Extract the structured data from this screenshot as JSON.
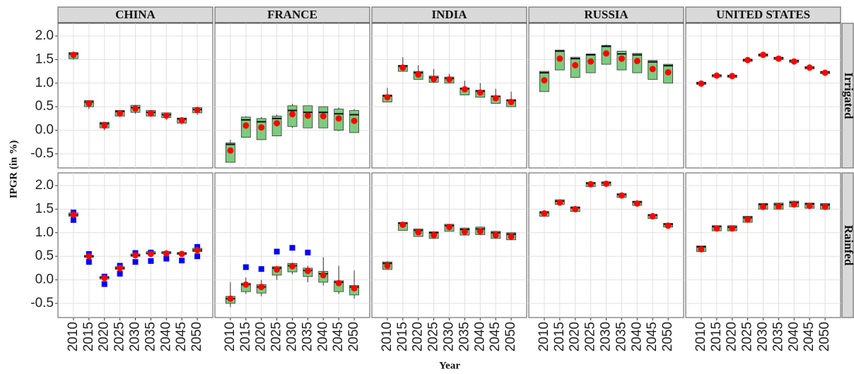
{
  "chart_data": {
    "type": "boxplot",
    "y_label": "IPGR (in %)",
    "x_label": "Year",
    "columns": [
      "CHINA",
      "FRANCE",
      "INDIA",
      "RUSSIA",
      "UNITED STATES"
    ],
    "rows": [
      "Irrigated",
      "Rainfed"
    ],
    "categories": [
      "2010",
      "2015",
      "2020",
      "2025",
      "2030",
      "2035",
      "2040",
      "2045",
      "2050"
    ],
    "ylim": [
      -0.8,
      2.27
    ],
    "yticks": [
      {
        "value": 2,
        "label": "2.0"
      },
      1.5,
      {
        "value": 1,
        "label": "1.0"
      },
      0.5,
      {
        "value": 0,
        "label": "0.0"
      },
      -0.5
    ],
    "grid": true,
    "box_color": "#7dcb7f",
    "mean_color": "#ff0000",
    "outlier_color": "#0000ff",
    "panels": [
      {
        "stats": [
          [
            1.5,
            1.52,
            1.62,
            1.65,
            1.65
          ],
          [
            0.45,
            0.5,
            0.6,
            0.63,
            0.63
          ],
          [
            0.0,
            0.05,
            0.14,
            0.17,
            0.17
          ],
          [
            0.28,
            0.3,
            0.4,
            0.42,
            0.42
          ],
          [
            0.35,
            0.38,
            0.48,
            0.53,
            0.53
          ],
          [
            0.28,
            0.3,
            0.38,
            0.42,
            0.42
          ],
          [
            0.22,
            0.27,
            0.33,
            0.37,
            0.37
          ],
          [
            0.12,
            0.15,
            0.24,
            0.26,
            0.26
          ],
          [
            0.33,
            0.37,
            0.44,
            0.48,
            0.48
          ]
        ],
        "means": [
          1.6,
          0.57,
          0.1,
          0.36,
          0.46,
          0.36,
          0.31,
          0.21,
          0.43
        ]
      },
      {
        "stats": [
          [
            -0.68,
            -0.68,
            -0.3,
            -0.27,
            -0.2
          ],
          [
            -0.15,
            -0.15,
            0.22,
            0.28,
            0.3
          ],
          [
            -0.2,
            -0.2,
            0.18,
            0.25,
            0.28
          ],
          [
            -0.12,
            -0.12,
            0.25,
            0.3,
            0.33
          ],
          [
            0.05,
            0.08,
            0.42,
            0.52,
            0.56
          ],
          [
            0.05,
            0.05,
            0.38,
            0.52,
            0.52
          ],
          [
            0.05,
            0.05,
            0.38,
            0.5,
            0.5
          ],
          [
            -0.02,
            0.0,
            0.35,
            0.45,
            0.48
          ],
          [
            -0.05,
            -0.05,
            0.33,
            0.42,
            0.45
          ]
        ],
        "means": [
          -0.43,
          0.1,
          0.06,
          0.15,
          0.34,
          0.31,
          0.3,
          0.25,
          0.2
        ]
      },
      {
        "stats": [
          [
            0.6,
            0.6,
            0.73,
            0.75,
            0.9
          ],
          [
            1.25,
            1.25,
            1.36,
            1.38,
            1.55
          ],
          [
            1.08,
            1.08,
            1.22,
            1.25,
            1.38
          ],
          [
            1.0,
            1.02,
            1.12,
            1.15,
            1.3
          ],
          [
            1.0,
            1.0,
            1.1,
            1.13,
            1.2
          ],
          [
            0.75,
            0.75,
            0.88,
            0.9,
            1.05
          ],
          [
            0.7,
            0.7,
            0.83,
            0.85,
            1.0
          ],
          [
            0.57,
            0.57,
            0.72,
            0.73,
            0.88
          ],
          [
            0.5,
            0.5,
            0.63,
            0.65,
            0.82
          ]
        ],
        "means": [
          0.7,
          1.33,
          1.18,
          1.09,
          1.08,
          0.87,
          0.8,
          0.68,
          0.6
        ]
      },
      {
        "stats": [
          [
            0.82,
            0.82,
            1.22,
            1.25,
            1.25
          ],
          [
            1.28,
            1.28,
            1.68,
            1.7,
            1.7
          ],
          [
            1.12,
            1.12,
            1.52,
            1.55,
            1.55
          ],
          [
            1.22,
            1.22,
            1.6,
            1.62,
            1.62
          ],
          [
            1.4,
            1.4,
            1.78,
            1.8,
            1.82
          ],
          [
            1.28,
            1.28,
            1.62,
            1.68,
            1.68
          ],
          [
            1.22,
            1.22,
            1.6,
            1.63,
            1.63
          ],
          [
            1.08,
            1.08,
            1.45,
            1.48,
            1.48
          ],
          [
            1.0,
            1.0,
            1.37,
            1.4,
            1.4
          ]
        ],
        "means": [
          1.06,
          1.52,
          1.38,
          1.46,
          1.63,
          1.52,
          1.47,
          1.3,
          1.23
        ]
      },
      {
        "stats": [
          [
            0.97,
            0.97,
            1.0,
            1.02,
            1.02
          ],
          [
            1.13,
            1.13,
            1.16,
            1.18,
            1.18
          ],
          [
            1.12,
            1.12,
            1.15,
            1.17,
            1.17
          ],
          [
            1.46,
            1.46,
            1.49,
            1.51,
            1.51
          ],
          [
            1.57,
            1.57,
            1.6,
            1.62,
            1.62
          ],
          [
            1.5,
            1.5,
            1.53,
            1.55,
            1.55
          ],
          [
            1.44,
            1.44,
            1.47,
            1.49,
            1.49
          ],
          [
            1.3,
            1.3,
            1.33,
            1.35,
            1.35
          ],
          [
            1.2,
            1.2,
            1.23,
            1.25,
            1.25
          ]
        ],
        "means": [
          0.99,
          1.16,
          1.15,
          1.49,
          1.6,
          1.52,
          1.46,
          1.33,
          1.22
        ]
      },
      {
        "stats": [
          [
            1.35,
            1.35,
            1.38,
            1.42,
            1.42
          ],
          [
            0.48,
            0.48,
            0.5,
            0.52,
            0.52
          ],
          [
            0.02,
            0.02,
            0.05,
            0.07,
            0.07
          ],
          [
            0.22,
            0.22,
            0.25,
            0.28,
            0.28
          ],
          [
            0.5,
            0.5,
            0.52,
            0.55,
            0.55
          ],
          [
            0.55,
            0.55,
            0.56,
            0.6,
            0.6
          ],
          [
            0.56,
            0.56,
            0.57,
            0.6,
            0.6
          ],
          [
            0.54,
            0.54,
            0.56,
            0.58,
            0.58
          ],
          [
            0.6,
            0.6,
            0.63,
            0.67,
            0.67
          ]
        ],
        "means": [
          1.38,
          0.5,
          0.04,
          0.25,
          0.52,
          0.55,
          0.56,
          0.55,
          0.63
        ],
        "outliers": [
          [
            1.27,
            1.43
          ],
          [
            0.38,
            0.55
          ],
          [
            -0.09,
            0.07
          ],
          [
            0.13,
            0.3
          ],
          [
            0.38,
            0.57
          ],
          [
            0.4,
            0.58
          ],
          [
            0.45
          ],
          [
            0.41
          ],
          [
            0.5,
            0.7
          ]
        ]
      },
      {
        "stats": [
          [
            -0.58,
            -0.5,
            -0.4,
            -0.35,
            -0.05
          ],
          [
            -0.3,
            -0.25,
            -0.1,
            -0.07,
            0.05
          ],
          [
            -0.35,
            -0.28,
            -0.15,
            -0.1,
            0.0
          ],
          [
            0.0,
            0.1,
            0.25,
            0.28,
            0.3
          ],
          [
            0.12,
            0.17,
            0.3,
            0.35,
            0.37
          ],
          [
            -0.05,
            0.07,
            0.2,
            0.25,
            0.3
          ],
          [
            -0.12,
            -0.05,
            0.13,
            0.18,
            0.48
          ],
          [
            -0.3,
            -0.25,
            -0.05,
            -0.02,
            0.3
          ],
          [
            -0.4,
            -0.32,
            -0.15,
            -0.12,
            0.2
          ]
        ],
        "means": [
          -0.4,
          -0.1,
          -0.15,
          0.22,
          0.29,
          0.19,
          0.1,
          -0.07,
          -0.18
        ],
        "outliers": [
          [],
          [
            0.27
          ],
          [
            0.23
          ],
          [
            0.6
          ],
          [
            0.68
          ],
          [
            0.58
          ],
          [],
          [],
          []
        ]
      },
      {
        "stats": [
          [
            0.22,
            0.22,
            0.35,
            0.38,
            0.4
          ],
          [
            1.05,
            1.05,
            1.2,
            1.22,
            1.22
          ],
          [
            0.92,
            0.92,
            1.05,
            1.08,
            1.08
          ],
          [
            0.88,
            0.88,
            1.0,
            1.02,
            1.02
          ],
          [
            1.03,
            1.03,
            1.15,
            1.18,
            1.18
          ],
          [
            0.95,
            0.95,
            1.07,
            1.1,
            1.1
          ],
          [
            0.96,
            0.96,
            1.08,
            1.12,
            1.12
          ],
          [
            0.88,
            0.88,
            1.0,
            1.03,
            1.03
          ],
          [
            0.85,
            0.85,
            0.97,
            1.0,
            1.0
          ]
        ],
        "means": [
          0.3,
          1.17,
          1.01,
          0.95,
          1.12,
          1.02,
          1.03,
          0.95,
          0.92
        ]
      },
      {
        "stats": [
          [
            1.35,
            1.35,
            1.43,
            1.45,
            1.45
          ],
          [
            1.6,
            1.6,
            1.67,
            1.7,
            1.7
          ],
          [
            1.45,
            1.45,
            1.53,
            1.55,
            1.55
          ],
          [
            1.98,
            1.98,
            2.05,
            2.07,
            2.07
          ],
          [
            2.0,
            2.0,
            2.06,
            2.08,
            2.08
          ],
          [
            1.75,
            1.75,
            1.81,
            1.83,
            1.83
          ],
          [
            1.58,
            1.58,
            1.65,
            1.67,
            1.67
          ],
          [
            1.3,
            1.3,
            1.37,
            1.39,
            1.39
          ],
          [
            1.12,
            1.12,
            1.18,
            1.2,
            1.2
          ]
        ],
        "means": [
          1.41,
          1.64,
          1.5,
          2.03,
          2.04,
          1.79,
          1.62,
          1.35,
          1.15
        ]
      },
      {
        "stats": [
          [
            0.6,
            0.6,
            0.7,
            0.72,
            0.72
          ],
          [
            1.04,
            1.04,
            1.13,
            1.15,
            1.15
          ],
          [
            1.04,
            1.04,
            1.12,
            1.15,
            1.15
          ],
          [
            1.22,
            1.22,
            1.32,
            1.35,
            1.35
          ],
          [
            1.5,
            1.5,
            1.6,
            1.62,
            1.62
          ],
          [
            1.5,
            1.5,
            1.6,
            1.63,
            1.63
          ],
          [
            1.55,
            1.55,
            1.64,
            1.67,
            1.67
          ],
          [
            1.52,
            1.52,
            1.61,
            1.63,
            1.63
          ],
          [
            1.5,
            1.5,
            1.59,
            1.62,
            1.62
          ]
        ],
        "means": [
          0.65,
          1.09,
          1.09,
          1.28,
          1.55,
          1.56,
          1.6,
          1.57,
          1.55
        ]
      }
    ]
  }
}
